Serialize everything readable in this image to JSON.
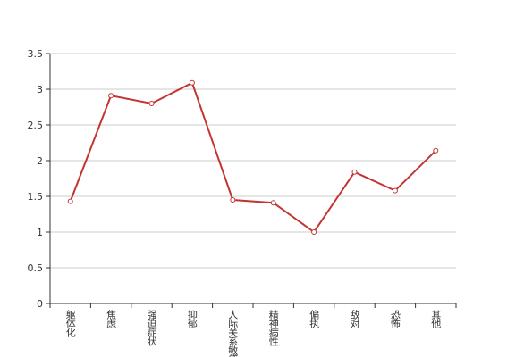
{
  "chart_data": {
    "type": "line",
    "categories": [
      "躯体化",
      "焦虑",
      "强迫症状",
      "抑郁",
      "人际关系敏感",
      "精神病性",
      "偏执",
      "敌对",
      "恐怖",
      "其他"
    ],
    "values": [
      1.43,
      2.91,
      2.8,
      3.09,
      1.45,
      1.41,
      1.0,
      1.84,
      1.58,
      2.14
    ],
    "color": "#c23531",
    "ylim": [
      0,
      3.5
    ],
    "yticks": [
      0,
      0.5,
      1,
      1.5,
      2,
      2.5,
      3,
      3.5
    ],
    "grid": true
  }
}
